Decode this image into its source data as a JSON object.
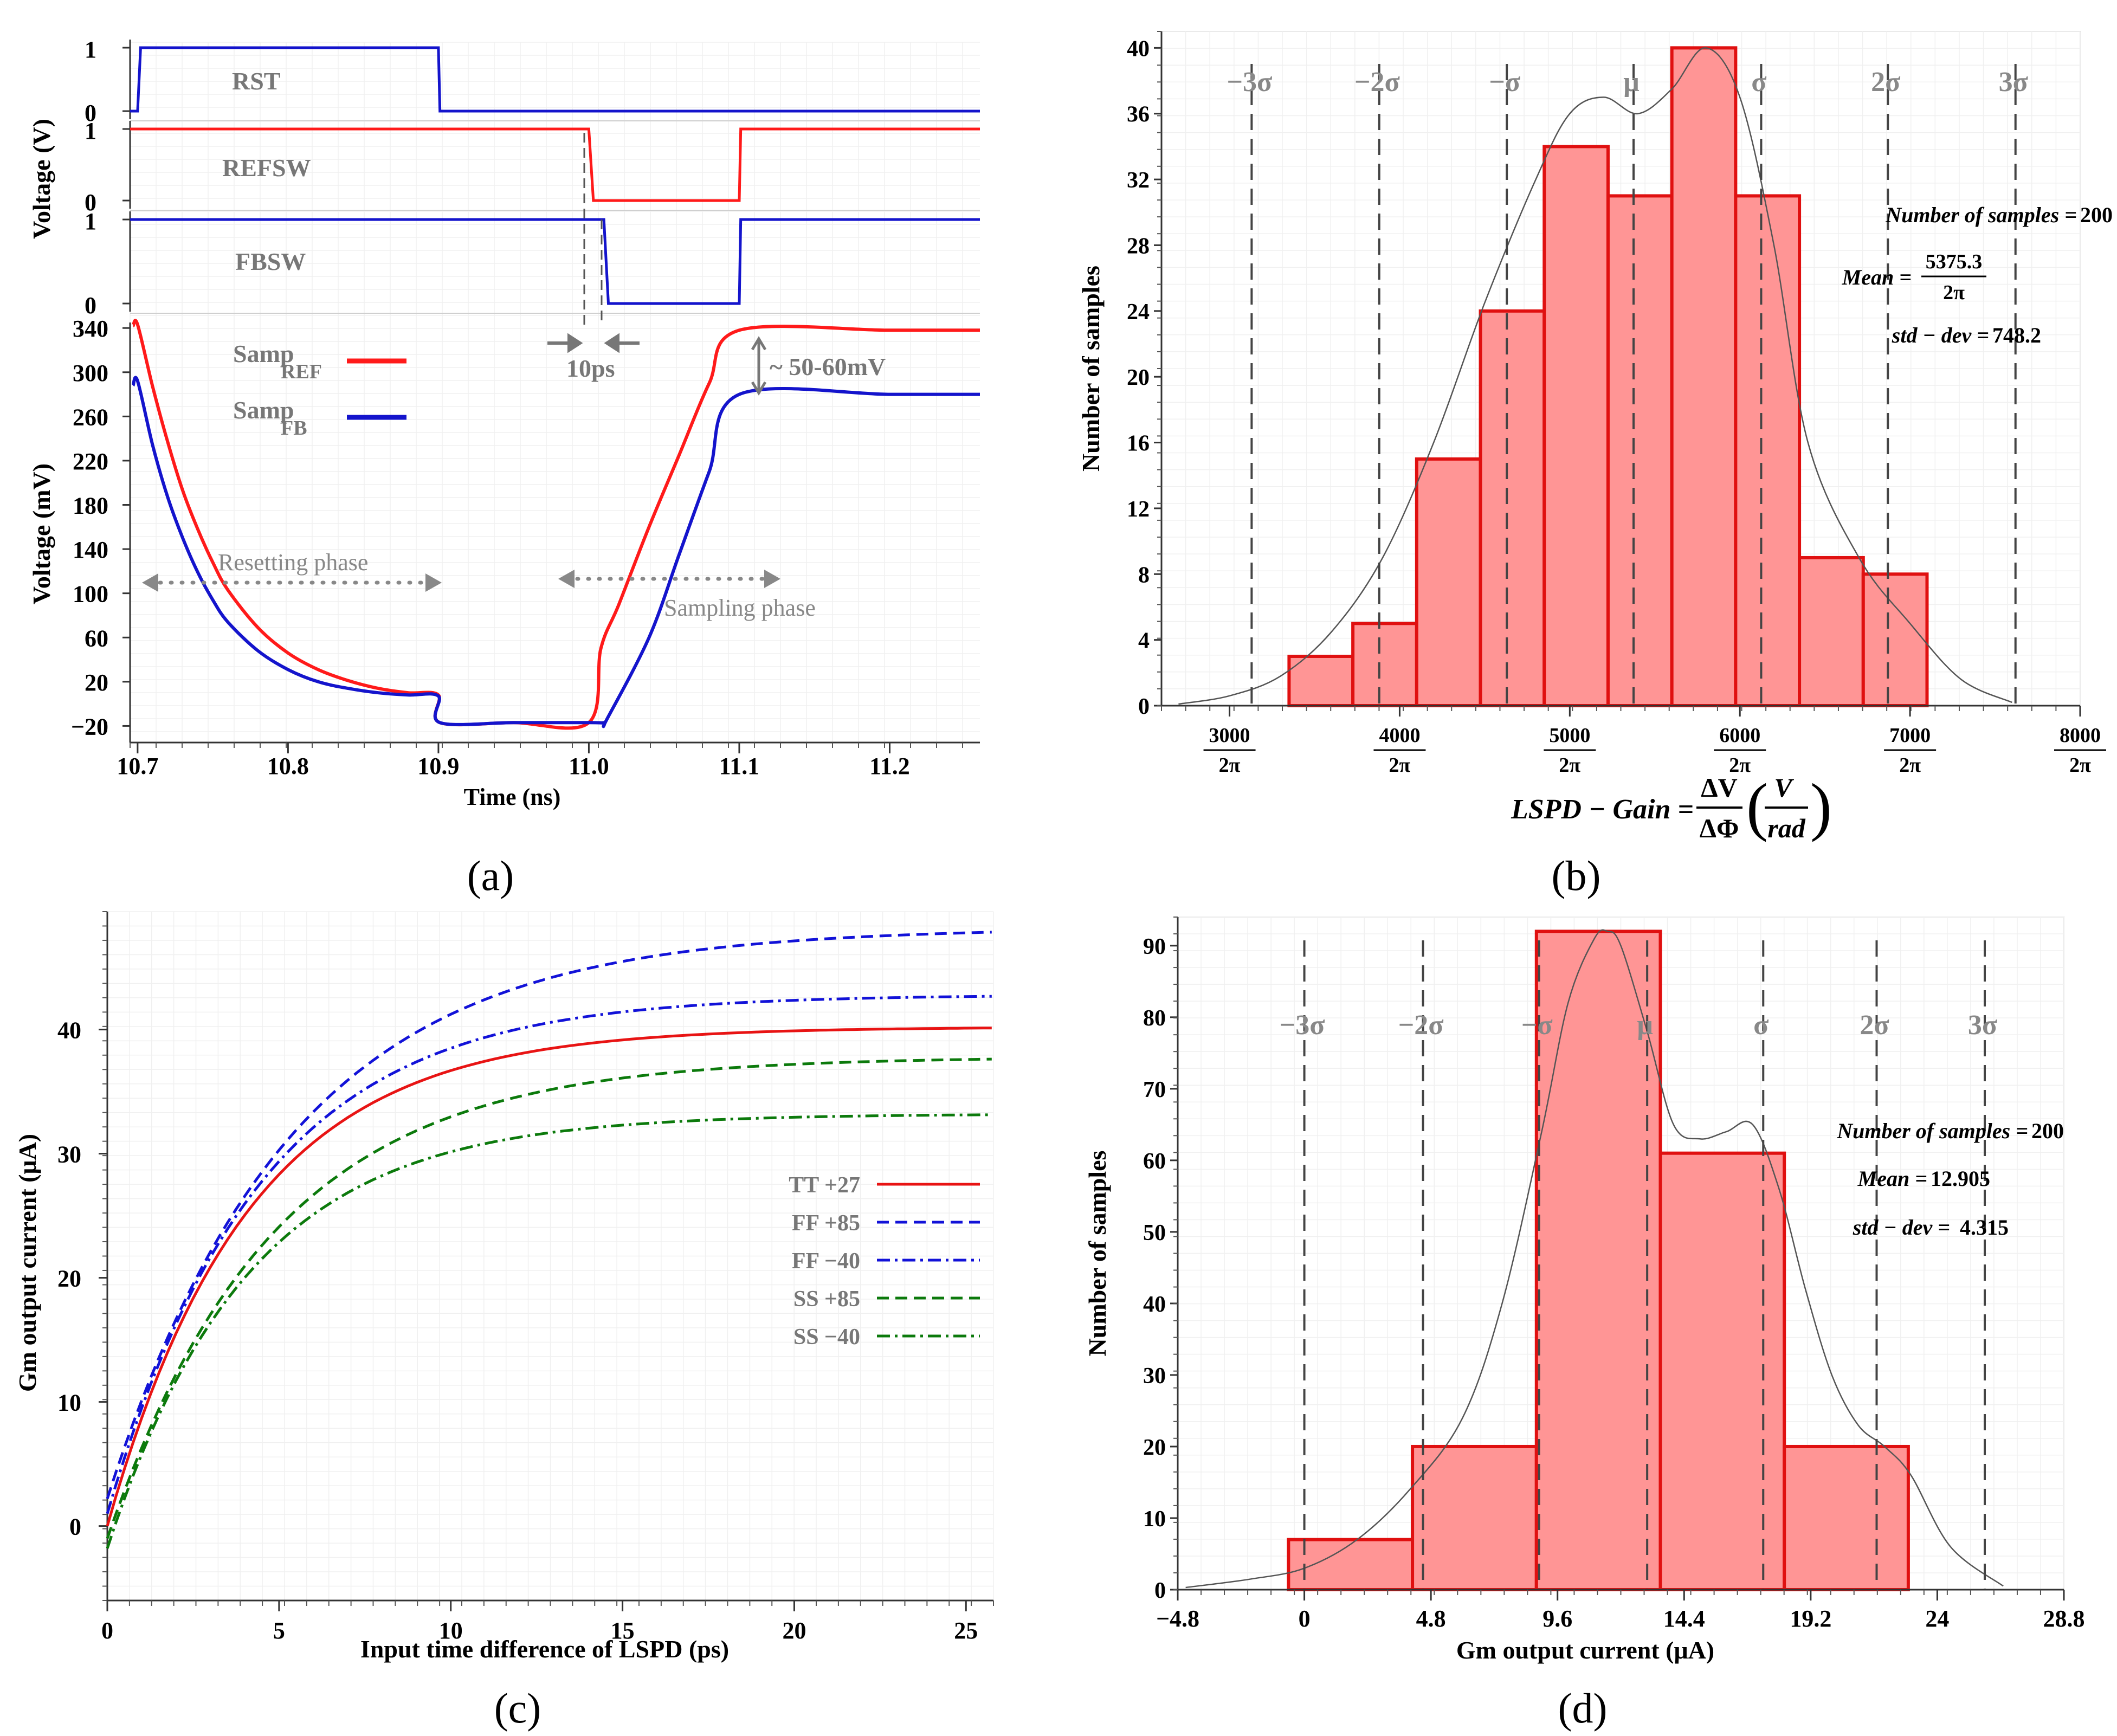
{
  "panel_labels": [
    "(a)",
    "(b)",
    "(c)",
    "(d)"
  ],
  "chart_data": [
    {
      "id": "a",
      "type": "line",
      "xlabel": "Time (ns)",
      "xlim": [
        10.695,
        11.26
      ],
      "xticks": [
        10.7,
        10.8,
        10.9,
        11.0,
        11.1,
        11.2
      ],
      "xtick_labels": [
        "10.7",
        "10.8",
        "10.9",
        "11.0",
        "11.1",
        "11.2"
      ],
      "digital_ylabel": "Voltage (V)",
      "analog_ylabel": "Voltage (mV)",
      "digital_tick_labels": [
        "1",
        "0"
      ],
      "analog_ylim": [
        -35,
        345
      ],
      "analog_yticks": [
        -20,
        20,
        60,
        100,
        140,
        180,
        220,
        260,
        300,
        340
      ],
      "analog_ytick_labels": [
        "−20",
        "20",
        "60",
        "100",
        "140",
        "180",
        "220",
        "260",
        "300",
        "340"
      ],
      "digital_signals": [
        {
          "name": "RST",
          "color": "#1414cc",
          "points": [
            [
              10.695,
              0
            ],
            [
              10.7,
              0
            ],
            [
              10.702,
              1
            ],
            [
              10.9,
              1
            ],
            [
              10.901,
              0
            ],
            [
              11.26,
              0
            ]
          ]
        },
        {
          "name": "REFSW",
          "color": "#ff1a1a",
          "points": [
            [
              10.695,
              1
            ],
            [
              11.0,
              1
            ],
            [
              11.003,
              0
            ],
            [
              11.1,
              0
            ],
            [
              11.101,
              1
            ],
            [
              11.26,
              1
            ]
          ]
        },
        {
          "name": "FBSW",
          "color": "#1414cc",
          "points": [
            [
              10.695,
              1
            ],
            [
              11.01,
              1
            ],
            [
              11.013,
              0
            ],
            [
              11.1,
              0
            ],
            [
              11.101,
              1
            ],
            [
              11.26,
              1
            ]
          ]
        }
      ],
      "series": [
        {
          "name": "Samp",
          "subscript": "REF",
          "color": "#ff1a1a",
          "x": [
            10.697,
            10.7,
            10.71,
            10.72,
            10.73,
            10.74,
            10.75,
            10.76,
            10.78,
            10.8,
            10.82,
            10.84,
            10.86,
            10.88,
            10.9,
            10.901,
            10.95,
            11.0,
            11.008,
            11.02,
            11.04,
            11.06,
            11.08,
            11.1,
            11.2,
            11.26
          ],
          "y": [
            342,
            343,
            287,
            237,
            193,
            158,
            128,
            103,
            69,
            46,
            31,
            21,
            14,
            10,
            8,
            -17,
            -17,
            -17,
            50,
            90,
            160,
            225,
            290,
            338,
            338,
            338
          ]
        },
        {
          "name": "Samp",
          "subscript": "FB",
          "color": "#1414cc",
          "x": [
            10.697,
            10.7,
            10.71,
            10.72,
            10.73,
            10.74,
            10.75,
            10.76,
            10.78,
            10.8,
            10.82,
            10.84,
            10.86,
            10.88,
            10.9,
            10.901,
            10.95,
            11.0,
            11.01,
            11.012,
            11.04,
            11.06,
            11.08,
            11.1,
            11.2,
            11.26
          ],
          "y": [
            288,
            292,
            234,
            187,
            150,
            119,
            94,
            74,
            48,
            31,
            20,
            14,
            10,
            8,
            7,
            -17,
            -17,
            -17,
            -17,
            -14,
            60,
            135,
            210,
            280,
            280,
            280
          ]
        }
      ],
      "annotations": {
        "delay": "10ps",
        "difference": "~ 50-60mV",
        "resetting": "Resetting phase",
        "sampling": "Sampling phase"
      }
    },
    {
      "id": "b",
      "type": "bar",
      "ylabel": "Number of samples",
      "xlabel": "LSPD − Gain = ΔV/ΔΦ (V/rad)",
      "xlabel_parts": {
        "lhs": "LSPD − Gain =",
        "num": "ΔV",
        "den": "ΔΦ",
        "unit_num": "V",
        "unit_den": "rad"
      },
      "xlim": [
        2600,
        8000
      ],
      "ylim": [
        0,
        41
      ],
      "yticks": [
        0,
        4,
        8,
        12,
        16,
        20,
        24,
        28,
        32,
        36,
        40
      ],
      "ytick_labels": [
        "0",
        "4",
        "8",
        "12",
        "16",
        "20",
        "24",
        "28",
        "32",
        "36",
        "40"
      ],
      "xticks": [
        3000,
        4000,
        5000,
        6000,
        7000,
        8000
      ],
      "xtick_labels": [
        {
          "num": "3000",
          "den": "2π"
        },
        {
          "num": "4000",
          "den": "2π"
        },
        {
          "num": "5000",
          "den": "2π"
        },
        {
          "num": "6000",
          "den": "2π"
        },
        {
          "num": "7000",
          "den": "2π"
        },
        {
          "num": "8000",
          "den": "2π"
        }
      ],
      "bin_edges": [
        3350,
        3725,
        4100,
        4475,
        4850,
        5225,
        5600,
        5975,
        6350,
        6725,
        7100
      ],
      "counts": [
        3,
        5,
        15,
        24,
        34,
        31,
        40,
        31,
        9,
        8
      ],
      "kde_x": [
        2700,
        3000,
        3300,
        3600,
        3900,
        4200,
        4500,
        4800,
        5000,
        5200,
        5400,
        5600,
        5800,
        6000,
        6200,
        6400,
        6700,
        7000,
        7300,
        7600
      ],
      "kde_y": [
        0.1,
        0.6,
        1.8,
        4.5,
        9,
        16,
        24.5,
        32,
        36,
        37,
        36,
        37.5,
        40,
        37,
        28,
        16,
        9,
        5,
        1.6,
        0.2
      ],
      "sigma_lines": [
        {
          "label": "−3σ",
          "x": 3130
        },
        {
          "label": "−2σ",
          "x": 3880
        },
        {
          "label": "−σ",
          "x": 4630
        },
        {
          "label": "μ",
          "x": 5375
        },
        {
          "label": "σ",
          "x": 6125
        },
        {
          "label": "2σ",
          "x": 6870
        },
        {
          "label": "3σ",
          "x": 7620
        }
      ],
      "stats": {
        "n_label": "Number of samples",
        "n_value": "200",
        "mean_label": "Mean",
        "mean_num": "5375.3",
        "mean_den": "2π",
        "std_label": "std − dev",
        "std_value": "748.2"
      }
    },
    {
      "id": "c",
      "type": "line",
      "xlabel": "Input time difference of LSPD (ps)",
      "ylabel": "Gm output current (μA)",
      "xlim": [
        0,
        25.8
      ],
      "ylim": [
        -6,
        49.5
      ],
      "xticks": [
        0,
        5,
        10,
        15,
        20,
        25
      ],
      "xtick_labels": [
        "0",
        "5",
        "10",
        "15",
        "20",
        "25"
      ],
      "yticks": [
        0,
        10,
        20,
        30,
        40
      ],
      "ytick_labels": [
        "0",
        "10",
        "20",
        "30",
        "40"
      ],
      "series": [
        {
          "name": "TT +27",
          "color": "#e81414",
          "dash": "",
          "params": {
            "y0": 0,
            "ymax": 40.2,
            "tau": 4.1
          }
        },
        {
          "name": "FF +85",
          "color": "#1212d8",
          "dash": "22,12",
          "params": {
            "y0": 2.2,
            "ymax": 48.2,
            "tau": 5.3
          }
        },
        {
          "name": "FF −40",
          "color": "#1212d8",
          "dash": "24,9,5,9",
          "params": {
            "y0": 1.0,
            "ymax": 42.8,
            "tau": 4.4
          }
        },
        {
          "name": "SS +85",
          "color": "#0c7a0c",
          "dash": "22,12",
          "params": {
            "y0": -1.0,
            "ymax": 37.8,
            "tau": 4.8
          }
        },
        {
          "name": "SS −40",
          "color": "#0c7a0c",
          "dash": "24,9,5,9",
          "params": {
            "y0": -1.8,
            "ymax": 33.2,
            "tau": 4.1
          }
        }
      ]
    },
    {
      "id": "d",
      "type": "bar",
      "xlabel": "Gm output current (μA)",
      "ylabel": "Number of samples",
      "xlim": [
        -4.8,
        28.8
      ],
      "ylim": [
        0,
        94
      ],
      "xticks": [
        -4.8,
        0,
        4.8,
        9.6,
        14.4,
        19.2,
        24,
        28.8
      ],
      "xtick_labels": [
        "−4.8",
        "0",
        "4.8",
        "9.6",
        "14.4",
        "19.2",
        "24",
        "28.8"
      ],
      "yticks": [
        0,
        10,
        20,
        30,
        40,
        50,
        60,
        70,
        80,
        90
      ],
      "ytick_labels": [
        "0",
        "10",
        "20",
        "30",
        "40",
        "50",
        "60",
        "70",
        "80",
        "90"
      ],
      "bin_edges": [
        -0.6,
        4.1,
        8.8,
        13.5,
        18.2,
        22.9
      ],
      "counts": [
        7,
        20,
        92,
        61,
        20
      ],
      "kde_x": [
        -4.5,
        -2,
        0,
        2,
        4,
        6,
        7.5,
        9,
        10,
        11,
        11.5,
        12,
        13,
        14,
        15,
        16,
        17,
        18,
        19,
        20,
        21,
        22,
        23,
        24.5,
        26.5
      ],
      "kde_y": [
        0.3,
        1.5,
        3,
        7,
        14,
        24,
        40,
        64,
        82,
        91,
        92,
        90,
        78,
        65,
        63,
        64,
        65,
        56,
        42,
        30,
        23,
        20,
        16,
        6,
        0.5
      ],
      "sigma_lines": [
        {
          "label": "−3σ",
          "x": 0.0
        },
        {
          "label": "−2σ",
          "x": 4.5
        },
        {
          "label": "−σ",
          "x": 8.9
        },
        {
          "label": "μ",
          "x": 13.0
        },
        {
          "label": "σ",
          "x": 17.4
        },
        {
          "label": "2σ",
          "x": 21.7
        },
        {
          "label": "3σ",
          "x": 25.8
        }
      ],
      "stats": {
        "n_label": "Number of samples",
        "n_value": "200",
        "mean_label": "Mean",
        "mean_value": "12.905",
        "std_label": "std − dev",
        "std_value": "4.315"
      }
    }
  ]
}
